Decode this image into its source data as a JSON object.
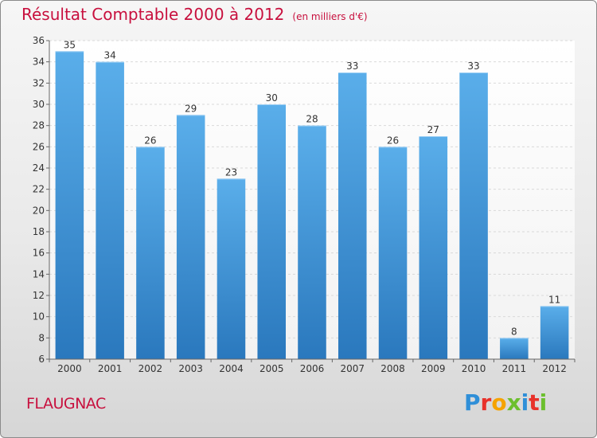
{
  "chart_data": {
    "type": "bar",
    "title": "Résultat Comptable 2000 à 2012",
    "subtitle": "(en milliers d'€)",
    "xlabel": "",
    "ylabel": "",
    "ylim": [
      6,
      36
    ],
    "yticks": [
      6,
      8,
      10,
      12,
      14,
      16,
      18,
      20,
      22,
      24,
      26,
      28,
      30,
      32,
      34,
      36
    ],
    "categories": [
      "2000",
      "2001",
      "2002",
      "2003",
      "2004",
      "2005",
      "2006",
      "2007",
      "2008",
      "2009",
      "2010",
      "2011",
      "2012"
    ],
    "values": [
      35,
      34,
      26,
      29,
      23,
      30,
      28,
      33,
      26,
      27,
      33,
      8,
      11
    ],
    "grid": true,
    "bar_color": "#4a9fdf"
  },
  "footer": {
    "commune": "FLAUGNAC",
    "brand": "Proxiti",
    "brand_colors": [
      "#2f8fd8",
      "#e8312a",
      "#f5a300",
      "#6cbf2e",
      "#2f8fd8",
      "#e8312a",
      "#6cbf2e"
    ]
  }
}
